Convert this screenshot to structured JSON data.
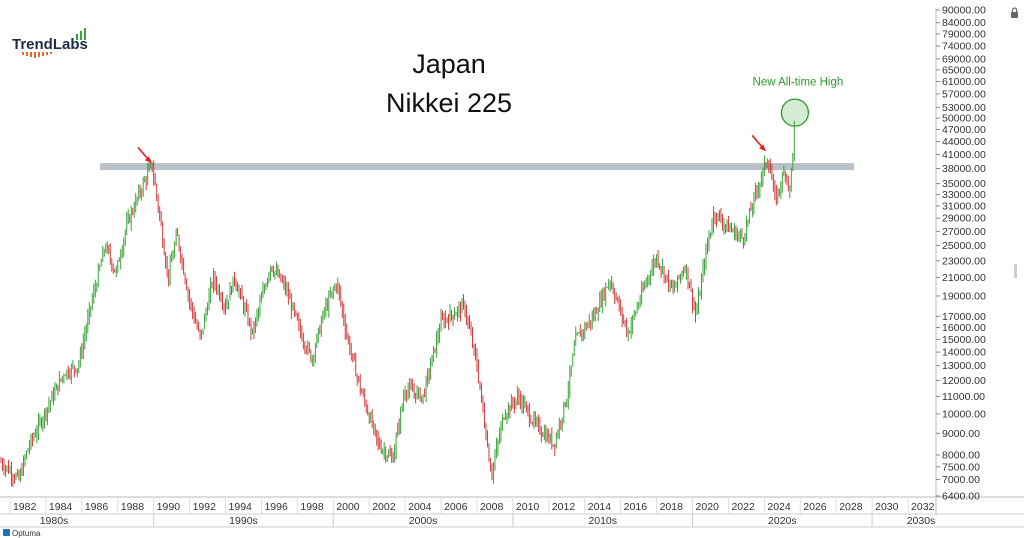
{
  "brand": {
    "logo_text": "TrendLabs",
    "footer_text": "Optuma"
  },
  "colors": {
    "up": "#3aa23a",
    "down": "#d23c3c",
    "resistance": "#b8c0c8",
    "annotation": "#2e9a2e",
    "arrow": "#e02020"
  },
  "icons": {
    "lock": "lock-icon"
  },
  "chart_data": {
    "type": "candlestick",
    "title_line1": "Japan",
    "title_line2": "Nikkei 225",
    "yscale": "log",
    "ylim": [
      6400,
      90000
    ],
    "xlim": [
      1981.5,
      2033.5
    ],
    "y_ticks": [
      "90000.00",
      "84000.00",
      "79000.00",
      "74000.00",
      "69000.00",
      "65000.00",
      "61000.00",
      "57000.00",
      "53000.00",
      "50000.00",
      "47000.00",
      "44000.00",
      "41000.00",
      "38000.00",
      "35000.00",
      "33000.00",
      "31000.00",
      "29000.00",
      "27000.00",
      "25000.00",
      "23000.00",
      "21000.00",
      "19000.00",
      "17000.00",
      "16000.00",
      "15000.00",
      "14000.00",
      "13000.00",
      "12000.00",
      "11000.00",
      "10000.00",
      "9000.00",
      "8000.00",
      "7500.00",
      "7000.00",
      "6400.00"
    ],
    "x_ticks": [
      "1982",
      "1984",
      "1986",
      "1988",
      "1990",
      "1992",
      "1994",
      "1996",
      "1998",
      "2000",
      "2002",
      "2004",
      "2006",
      "2008",
      "2010",
      "2012",
      "2014",
      "2016",
      "2018",
      "2020",
      "2022",
      "2024",
      "2026",
      "2028",
      "2030",
      "2032"
    ],
    "decades": [
      "1980s",
      "1990s",
      "2000s",
      "2010s",
      "2020s",
      "2030s"
    ],
    "resistance_level": 38400,
    "annotation_text": "New All-time High",
    "arrows": [
      {
        "x": 1989.9,
        "y": 38900
      },
      {
        "x": 2024.1,
        "y": 41500
      }
    ],
    "highlight": {
      "x": 2025.7,
      "y": 51500
    },
    "series": [
      {
        "x": 1981.5,
        "y": 7700
      },
      {
        "x": 1982.5,
        "y": 7000
      },
      {
        "x": 1983.0,
        "y": 8300
      },
      {
        "x": 1984.0,
        "y": 10200
      },
      {
        "x": 1985.0,
        "y": 12500
      },
      {
        "x": 1985.8,
        "y": 13000
      },
      {
        "x": 1986.5,
        "y": 18000
      },
      {
        "x": 1987.3,
        "y": 25000
      },
      {
        "x": 1987.9,
        "y": 21500
      },
      {
        "x": 1988.5,
        "y": 28000
      },
      {
        "x": 1989.3,
        "y": 34000
      },
      {
        "x": 1989.9,
        "y": 38900
      },
      {
        "x": 1990.3,
        "y": 30000
      },
      {
        "x": 1990.8,
        "y": 21000
      },
      {
        "x": 1991.3,
        "y": 26500
      },
      {
        "x": 1992.0,
        "y": 18500
      },
      {
        "x": 1992.6,
        "y": 15000
      },
      {
        "x": 1993.3,
        "y": 21000
      },
      {
        "x": 1994.0,
        "y": 18000
      },
      {
        "x": 1994.5,
        "y": 21000
      },
      {
        "x": 1995.5,
        "y": 15500
      },
      {
        "x": 1996.5,
        "y": 22500
      },
      {
        "x": 1997.3,
        "y": 20000
      },
      {
        "x": 1998.2,
        "y": 15500
      },
      {
        "x": 1998.8,
        "y": 13500
      },
      {
        "x": 1999.5,
        "y": 17500
      },
      {
        "x": 2000.2,
        "y": 20500
      },
      {
        "x": 2000.8,
        "y": 15000
      },
      {
        "x": 2001.5,
        "y": 11500
      },
      {
        "x": 2002.5,
        "y": 8500
      },
      {
        "x": 2003.3,
        "y": 7800
      },
      {
        "x": 2004.0,
        "y": 11500
      },
      {
        "x": 2005.0,
        "y": 11000
      },
      {
        "x": 2006.0,
        "y": 16500
      },
      {
        "x": 2007.3,
        "y": 18000
      },
      {
        "x": 2008.0,
        "y": 13000
      },
      {
        "x": 2008.8,
        "y": 7200
      },
      {
        "x": 2009.5,
        "y": 10000
      },
      {
        "x": 2010.3,
        "y": 11000
      },
      {
        "x": 2011.2,
        "y": 9500
      },
      {
        "x": 2012.3,
        "y": 8500
      },
      {
        "x": 2013.0,
        "y": 11000
      },
      {
        "x": 2013.5,
        "y": 15000
      },
      {
        "x": 2014.5,
        "y": 17000
      },
      {
        "x": 2015.4,
        "y": 20800
      },
      {
        "x": 2016.4,
        "y": 15500
      },
      {
        "x": 2017.5,
        "y": 21000
      },
      {
        "x": 2018.0,
        "y": 23500
      },
      {
        "x": 2018.9,
        "y": 19500
      },
      {
        "x": 2019.6,
        "y": 22500
      },
      {
        "x": 2020.2,
        "y": 17000
      },
      {
        "x": 2020.7,
        "y": 23500
      },
      {
        "x": 2021.2,
        "y": 30000
      },
      {
        "x": 2022.0,
        "y": 27500
      },
      {
        "x": 2022.8,
        "y": 26000
      },
      {
        "x": 2023.5,
        "y": 33000
      },
      {
        "x": 2024.2,
        "y": 40500
      },
      {
        "x": 2024.6,
        "y": 32000
      },
      {
        "x": 2025.2,
        "y": 38000
      },
      {
        "x": 2025.4,
        "y": 33000
      },
      {
        "x": 2025.7,
        "y": 49000
      }
    ]
  }
}
